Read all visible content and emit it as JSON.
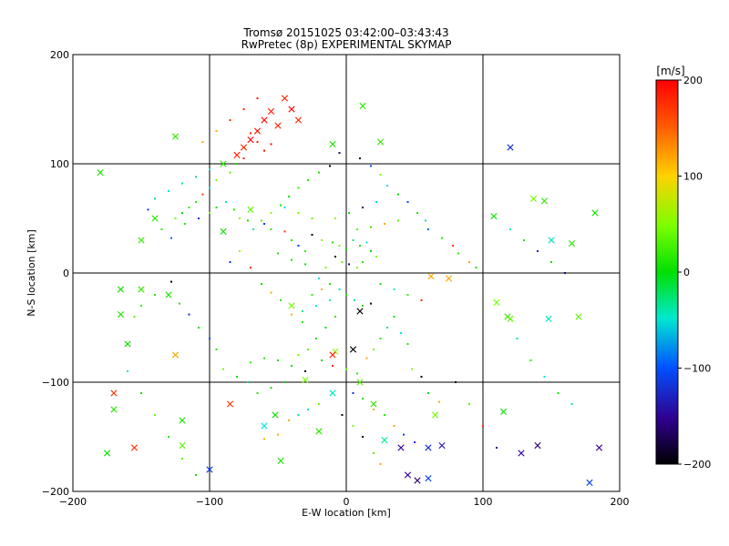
{
  "chart_data": {
    "type": "scatter",
    "title": "Tromsø 20151025 03:42:00–03:43:43",
    "subtitle": "RwPretec (8p) EXPERIMENTAL SKYMAP",
    "xlabel": "E-W location [km]",
    "ylabel": "N-S location [km]",
    "xlim": [
      -200,
      200
    ],
    "ylim": [
      -200,
      200
    ],
    "x_ticks": [
      -200,
      -100,
      0,
      100,
      200
    ],
    "y_ticks": [
      -200,
      -100,
      0,
      100,
      200
    ],
    "grid": true,
    "colorbar": {
      "label": "[m/s]",
      "range": [
        -200,
        200
      ],
      "ticks": [
        200,
        100,
        0,
        -100,
        -200
      ]
    },
    "series": [
      {
        "marker": "x",
        "points": [
          [
            -45,
            160
          ],
          [
            -55,
            148
          ],
          [
            -60,
            140
          ],
          [
            -50,
            135
          ],
          [
            -65,
            130
          ],
          [
            -70,
            122
          ],
          [
            -75,
            115
          ],
          [
            -80,
            108
          ],
          [
            -40,
            150
          ],
          [
            -35,
            140
          ],
          [
            -90,
            100
          ],
          [
            120,
            115
          ],
          [
            108,
            52
          ],
          [
            137,
            68
          ],
          [
            145,
            66
          ],
          [
            178,
            -192
          ],
          [
            -175,
            -165
          ],
          [
            -120,
            -135
          ],
          [
            -120,
            -158
          ],
          [
            10,
            -35
          ],
          [
            -8,
            -72
          ],
          [
            -10,
            -75
          ],
          [
            -10,
            -110
          ],
          [
            5,
            -70
          ],
          [
            -52,
            -130
          ],
          [
            -48,
            -172
          ],
          [
            -100,
            -180
          ],
          [
            -150,
            -15
          ],
          [
            -165,
            -15
          ],
          [
            -165,
            -38
          ],
          [
            -170,
            -110
          ],
          [
            110,
            -27
          ],
          [
            115,
            -127
          ],
          [
            128,
            -165
          ],
          [
            140,
            -158
          ],
          [
            118,
            -40
          ],
          [
            120,
            -42
          ],
          [
            148,
            -42
          ],
          [
            -20,
            -145
          ],
          [
            28,
            -153
          ],
          [
            65,
            -130
          ],
          [
            60,
            -160
          ],
          [
            70,
            -158
          ],
          [
            45,
            -185
          ],
          [
            52,
            -190
          ],
          [
            60,
            -188
          ],
          [
            -140,
            50
          ],
          [
            -150,
            30
          ],
          [
            -160,
            -65
          ],
          [
            -130,
            -20
          ],
          [
            -170,
            -125
          ],
          [
            170,
            -40
          ],
          [
            182,
            55
          ],
          [
            185,
            -160
          ],
          [
            165,
            27
          ],
          [
            -125,
            -75
          ],
          [
            -90,
            38
          ],
          [
            -70,
            58
          ],
          [
            -30,
            -98
          ],
          [
            20,
            -120
          ],
          [
            10,
            -100
          ],
          [
            -180,
            92
          ],
          [
            -60,
            -140
          ],
          [
            40,
            -160
          ],
          [
            75,
            -5
          ],
          [
            62,
            -3
          ],
          [
            12,
            153
          ],
          [
            -125,
            125
          ],
          [
            -155,
            -160
          ],
          [
            -10,
            118
          ],
          [
            150,
            30
          ],
          [
            25,
            120
          ],
          [
            -85,
            -120
          ],
          [
            -40,
            -30
          ]
        ]
      },
      {
        "marker": "dot",
        "points": [
          [
            -70,
            128
          ],
          [
            -65,
            120
          ],
          [
            -60,
            112
          ],
          [
            -75,
            105
          ],
          [
            -80,
            100
          ],
          [
            -55,
            118
          ],
          [
            -85,
            92
          ],
          [
            -95,
            85
          ],
          [
            -100,
            78
          ],
          [
            -105,
            72
          ],
          [
            -110,
            65
          ],
          [
            -115,
            60
          ],
          [
            -120,
            55
          ],
          [
            -125,
            50
          ],
          [
            -118,
            45
          ],
          [
            -108,
            50
          ],
          [
            -100,
            55
          ],
          [
            -95,
            60
          ],
          [
            -88,
            65
          ],
          [
            -82,
            58
          ],
          [
            -78,
            50
          ],
          [
            -72,
            48
          ],
          [
            -60,
            45
          ],
          [
            -55,
            40
          ],
          [
            -45,
            38
          ],
          [
            -40,
            30
          ],
          [
            -35,
            25
          ],
          [
            -30,
            20
          ],
          [
            -25,
            35
          ],
          [
            -18,
            30
          ],
          [
            -10,
            28
          ],
          [
            -5,
            25
          ],
          [
            0,
            22
          ],
          [
            5,
            30
          ],
          [
            10,
            25
          ],
          [
            15,
            28
          ],
          [
            18,
            20
          ],
          [
            22,
            15
          ],
          [
            -8,
            15
          ],
          [
            -3,
            10
          ],
          [
            2,
            8
          ],
          [
            8,
            5
          ],
          [
            12,
            10
          ],
          [
            -15,
            5
          ],
          [
            -20,
            -5
          ],
          [
            -12,
            -10
          ],
          [
            -5,
            -15
          ],
          [
            0,
            -20
          ],
          [
            6,
            -25
          ],
          [
            12,
            -30
          ],
          [
            18,
            -28
          ],
          [
            -8,
            -40
          ],
          [
            -15,
            -50
          ],
          [
            -22,
            -60
          ],
          [
            -28,
            -70
          ],
          [
            -35,
            -75
          ],
          [
            -18,
            -80
          ],
          [
            -10,
            -85
          ],
          [
            0,
            -88
          ],
          [
            8,
            -92
          ],
          [
            15,
            -78
          ],
          [
            20,
            -70
          ],
          [
            25,
            -60
          ],
          [
            30,
            -50
          ],
          [
            35,
            -40
          ],
          [
            40,
            -55
          ],
          [
            45,
            -65
          ],
          [
            -30,
            -90
          ],
          [
            -40,
            -85
          ],
          [
            -50,
            -80
          ],
          [
            -60,
            -78
          ],
          [
            -70,
            -82
          ],
          [
            -45,
            -100
          ],
          [
            -55,
            -105
          ],
          [
            -65,
            -110
          ],
          [
            5,
            -110
          ],
          [
            12,
            -115
          ],
          [
            20,
            -125
          ],
          [
            28,
            -130
          ],
          [
            35,
            -140
          ],
          [
            42,
            -148
          ],
          [
            50,
            -155
          ],
          [
            -20,
            -120
          ],
          [
            -28,
            -125
          ],
          [
            -35,
            -130
          ],
          [
            -42,
            -135
          ],
          [
            -50,
            -148
          ],
          [
            -60,
            -152
          ],
          [
            60,
            40
          ],
          [
            70,
            32
          ],
          [
            78,
            25
          ],
          [
            82,
            18
          ],
          [
            90,
            10
          ],
          [
            95,
            5
          ],
          [
            -140,
            -20
          ],
          [
            -150,
            -30
          ],
          [
            -155,
            -40
          ],
          [
            -128,
            -8
          ],
          [
            -122,
            -28
          ],
          [
            -115,
            -38
          ],
          [
            -108,
            -50
          ],
          [
            -100,
            -60
          ],
          [
            -95,
            -70
          ],
          [
            -90,
            -88
          ],
          [
            -80,
            -95
          ],
          [
            -72,
            -100
          ],
          [
            -85,
            10
          ],
          [
            -78,
            20
          ],
          [
            -70,
            5
          ],
          [
            -62,
            -10
          ],
          [
            -55,
            -18
          ],
          [
            -48,
            -25
          ],
          [
            -40,
            -38
          ],
          [
            -32,
            -45
          ],
          [
            -25,
            -20
          ],
          [
            -18,
            -15
          ],
          [
            -30,
            8
          ],
          [
            -40,
            12
          ],
          [
            -50,
            18
          ],
          [
            30,
            80
          ],
          [
            38,
            72
          ],
          [
            45,
            65
          ],
          [
            52,
            55
          ],
          [
            58,
            48
          ],
          [
            25,
            90
          ],
          [
            18,
            98
          ],
          [
            10,
            105
          ],
          [
            -5,
            110
          ],
          [
            -12,
            98
          ],
          [
            -20,
            92
          ],
          [
            -28,
            85
          ],
          [
            -35,
            78
          ],
          [
            -42,
            70
          ],
          [
            -48,
            62
          ],
          [
            -55,
            55
          ],
          [
            -62,
            48
          ],
          [
            -68,
            40
          ],
          [
            -100,
            95
          ],
          [
            -110,
            88
          ],
          [
            -120,
            82
          ],
          [
            -130,
            75
          ],
          [
            -140,
            68
          ],
          [
            -145,
            58
          ],
          [
            -135,
            40
          ],
          [
            -128,
            32
          ],
          [
            120,
            40
          ],
          [
            130,
            30
          ],
          [
            140,
            20
          ],
          [
            150,
            10
          ],
          [
            160,
            0
          ],
          [
            125,
            -60
          ],
          [
            135,
            -80
          ],
          [
            145,
            -95
          ],
          [
            155,
            -110
          ],
          [
            165,
            -120
          ],
          [
            -160,
            -90
          ],
          [
            -150,
            -110
          ],
          [
            -140,
            -130
          ],
          [
            -130,
            -150
          ],
          [
            -120,
            -170
          ],
          [
            -110,
            -185
          ],
          [
            80,
            -100
          ],
          [
            90,
            -120
          ],
          [
            100,
            -140
          ],
          [
            110,
            -160
          ],
          [
            -85,
            140
          ],
          [
            -95,
            130
          ],
          [
            -105,
            120
          ],
          [
            -75,
            150
          ],
          [
            -65,
            160
          ],
          [
            48,
            -88
          ],
          [
            55,
            -95
          ],
          [
            60,
            -110
          ],
          [
            68,
            -118
          ],
          [
            -3,
            -130
          ],
          [
            5,
            -140
          ],
          [
            12,
            -150
          ],
          [
            20,
            -165
          ],
          [
            25,
            -175
          ],
          [
            -8,
            50
          ],
          [
            2,
            55
          ],
          [
            12,
            60
          ],
          [
            22,
            65
          ],
          [
            -25,
            50
          ],
          [
            -35,
            55
          ],
          [
            -45,
            60
          ],
          [
            8,
            40
          ],
          [
            18,
            42
          ],
          [
            28,
            45
          ],
          [
            38,
            48
          ],
          [
            -12,
            -25
          ],
          [
            -22,
            -30
          ],
          [
            -32,
            -35
          ],
          [
            25,
            -10
          ],
          [
            35,
            -15
          ],
          [
            45,
            -20
          ],
          [
            55,
            -25
          ]
        ]
      }
    ]
  }
}
